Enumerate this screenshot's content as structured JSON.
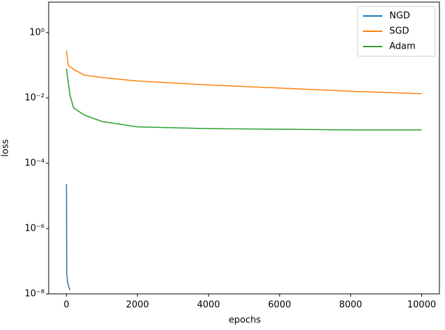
{
  "chart_data": {
    "type": "line",
    "x_label": "epochs",
    "y_label": "loss",
    "xlim": [
      -500,
      10500
    ],
    "xticks": [
      0,
      2000,
      4000,
      6000,
      8000,
      10000
    ],
    "ylim": [
      1e-08,
      8.6
    ],
    "y_log": true,
    "yticks": [
      {
        "value": 1e-08,
        "label": "10⁻⁸"
      },
      {
        "value": 1e-06,
        "label": "10⁻⁶"
      },
      {
        "value": 0.0001,
        "label": "10⁻⁴"
      },
      {
        "value": 0.01,
        "label": "10⁻²"
      },
      {
        "value": 1,
        "label": "10⁰"
      }
    ],
    "legend": "upper right",
    "series": [
      {
        "name": "NGD",
        "color": "#1f77b4",
        "x": [
          0,
          5,
          10,
          30,
          60,
          100
        ],
        "values": [
          2.3e-05,
          5e-07,
          4e-08,
          2.5e-08,
          1.7e-08,
          1.3e-08
        ]
      },
      {
        "name": "SGD",
        "color": "#ff7f0e",
        "x": [
          0,
          50,
          200,
          500,
          1000,
          2000,
          4000,
          6000,
          8000,
          10000
        ],
        "values": [
          0.28,
          0.1,
          0.075,
          0.05,
          0.042,
          0.033,
          0.025,
          0.02,
          0.016,
          0.0135
        ]
      },
      {
        "name": "Adam",
        "color": "#2ca02c",
        "x": [
          0,
          100,
          200,
          500,
          1000,
          2000,
          4000,
          6000,
          8000,
          10000
        ],
        "values": [
          0.079,
          0.012,
          0.005,
          0.003,
          0.0019,
          0.0013,
          0.00115,
          0.0011,
          0.00105,
          0.00105
        ]
      }
    ]
  }
}
